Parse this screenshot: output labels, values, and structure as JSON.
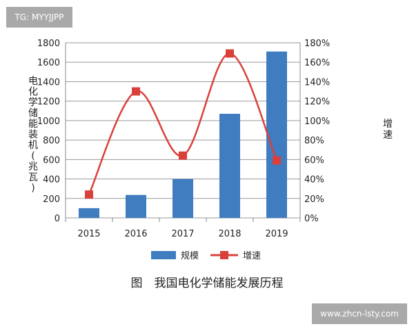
{
  "watermark_top": "TG: MYYJJPP",
  "watermark_bottom": "www.zhcn-lsty.com",
  "caption": "图　我国电化学储能发展历程",
  "chart_data": {
    "type": "bar+line",
    "categories": [
      "2015",
      "2016",
      "2017",
      "2018",
      "2019"
    ],
    "series": [
      {
        "name": "规模",
        "type": "bar",
        "axis": "left",
        "color": "#3f7cc0",
        "values": [
          100,
          236,
          400,
          1070,
          1710
        ]
      },
      {
        "name": "增速",
        "type": "line",
        "axis": "right",
        "color": "#d9403a",
        "values": [
          24,
          130,
          64,
          169,
          59
        ]
      }
    ],
    "ylabel": "电化学储能装机(兆瓦)",
    "y2label": "增速",
    "ylim": [
      0,
      1800
    ],
    "yticks": [
      "0",
      "200",
      "400",
      "600",
      "800",
      "1000",
      "1200",
      "1400",
      "1600",
      "1800"
    ],
    "y2lim": [
      0,
      180
    ],
    "y2ticks": [
      "0%",
      "20%",
      "40%",
      "60%",
      "80%",
      "100%",
      "120%",
      "140%",
      "160%",
      "180%"
    ],
    "grid": true,
    "legend": "bottom"
  }
}
